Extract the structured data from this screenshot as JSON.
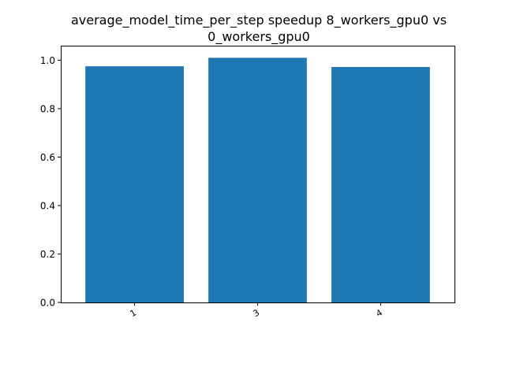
{
  "chart_data": {
    "type": "bar",
    "title": "average_model_time_per_step speedup 8_workers_gpu0 vs\n0_workers_gpu0",
    "title_lines": [
      "average_model_time_per_step speedup 8_workers_gpu0 vs",
      "0_workers_gpu0"
    ],
    "xlabel": "",
    "ylabel": "",
    "categories": [
      "1",
      "3",
      "4"
    ],
    "values": [
      0.975,
      1.01,
      0.972
    ],
    "ylim": [
      0,
      1.06
    ],
    "yticks": [
      0.0,
      0.2,
      0.4,
      0.6,
      0.8,
      1.0
    ],
    "ytick_labels": [
      "0.0",
      "0.2",
      "0.4",
      "0.6",
      "0.8",
      "1.0"
    ],
    "xtick_rotation_deg": -30,
    "grid": false,
    "bar_color": "#1f77b4"
  }
}
